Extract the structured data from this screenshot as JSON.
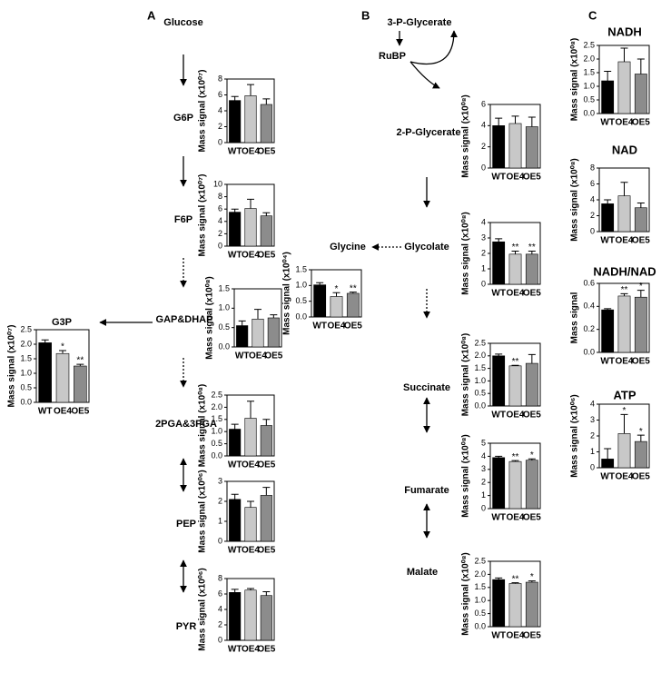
{
  "labels": {
    "panel_a": "A",
    "panel_b": "B",
    "panel_c": "C",
    "glucose": "Glucose",
    "p3_glycerate": "3-P-Glycerate",
    "rubp": "RuBP"
  },
  "bar_colors": [
    "#000000",
    "#c8c8c8",
    "#8c8c8c"
  ],
  "chart_data": [
    {
      "type": "bar",
      "title": "G6P",
      "y_label": "Mass signal (x10⁰⁷)",
      "categories": [
        "WT",
        "OE4",
        "OE5"
      ],
      "values": [
        5.3,
        5.9,
        4.8
      ],
      "errors": [
        0.5,
        1.4,
        0.7
      ],
      "ylim": [
        0,
        8
      ],
      "yticks": [
        0,
        2,
        4,
        6,
        8
      ]
    },
    {
      "type": "bar",
      "title": "F6P",
      "y_label": "Mass signal (x10⁰⁷)",
      "categories": [
        "WT",
        "OE4",
        "OE5"
      ],
      "values": [
        5.5,
        6.1,
        4.9
      ],
      "errors": [
        0.5,
        1.5,
        0.5
      ],
      "ylim": [
        0,
        10
      ],
      "yticks": [
        0,
        2,
        4,
        6,
        8,
        10
      ]
    },
    {
      "type": "bar",
      "title": "GAP&DHAP",
      "y_label": "Mass signal (x10⁰⁸)",
      "categories": [
        "WT",
        "OE4",
        "OE5"
      ],
      "values": [
        0.55,
        0.72,
        0.75
      ],
      "errors": [
        0.12,
        0.25,
        0.08
      ],
      "ylim": [
        0,
        1.5
      ],
      "yticks": [
        {
          "value": 0,
          "label": "0.0"
        },
        0.5,
        {
          "value": 1,
          "label": "1.0"
        },
        1.5
      ]
    },
    {
      "type": "bar",
      "title": "2PGA&3PGA",
      "y_label": "Mass signal (x10⁰⁸)",
      "categories": [
        "WT",
        "OE4",
        "OE5"
      ],
      "values": [
        1.1,
        1.55,
        1.25
      ],
      "errors": [
        0.2,
        0.7,
        0.25
      ],
      "ylim": [
        0,
        2.5
      ],
      "yticks": [
        {
          "value": 0,
          "label": "0.0"
        },
        0.5,
        {
          "value": 1,
          "label": "1.0"
        },
        1.5,
        {
          "value": 2,
          "label": "2.0"
        },
        2.5
      ]
    },
    {
      "type": "bar",
      "title": "PEP",
      "y_label": "Mass signal (x10⁰⁶)",
      "categories": [
        "WT",
        "OE4",
        "OE5"
      ],
      "values": [
        2.1,
        1.7,
        2.3
      ],
      "errors": [
        0.25,
        0.3,
        0.4
      ],
      "ylim": [
        0,
        3
      ],
      "yticks": [
        0,
        1,
        2,
        3
      ]
    },
    {
      "type": "bar",
      "title": "PYR",
      "y_label": "Mass signal (x10⁰⁶)",
      "categories": [
        "WT",
        "OE4",
        "OE5"
      ],
      "values": [
        6.2,
        6.5,
        5.8
      ],
      "errors": [
        0.4,
        0.2,
        0.5
      ],
      "ylim": [
        0,
        8
      ],
      "yticks": [
        0,
        2,
        4,
        6,
        8
      ]
    },
    {
      "type": "bar",
      "title": "G3P",
      "y_label": "Mass signal (x10⁰⁷)",
      "categories": [
        "WT",
        "OE4",
        "OE5"
      ],
      "values": [
        2.05,
        1.68,
        1.25
      ],
      "errors": [
        0.1,
        0.1,
        0.06
      ],
      "annotations": [
        null,
        "*",
        "**"
      ],
      "ylim": [
        0,
        2.5
      ],
      "yticks": [
        {
          "value": 0,
          "label": "0.0"
        },
        0.5,
        {
          "value": 1,
          "label": "1.0"
        },
        1.5,
        {
          "value": 2,
          "label": "2.0"
        },
        2.5
      ]
    },
    {
      "type": "bar",
      "title": "2-P-Glycerate",
      "y_label": "Mass signal (x10⁰⁸)",
      "categories": [
        "WT",
        "OE4",
        "OE5"
      ],
      "values": [
        4.0,
        4.2,
        3.9
      ],
      "errors": [
        0.7,
        0.7,
        0.9
      ],
      "ylim": [
        0,
        6
      ],
      "yticks": [
        0,
        2,
        4,
        6
      ]
    },
    {
      "type": "bar",
      "title": "Glycolate",
      "y_label": "Mass signal (x10⁰⁸)",
      "categories": [
        "WT",
        "OE4",
        "OE5"
      ],
      "values": [
        2.75,
        1.95,
        1.95
      ],
      "errors": [
        0.2,
        0.2,
        0.2
      ],
      "annotations": [
        null,
        "**",
        "**"
      ],
      "ylim": [
        0,
        4
      ],
      "yticks": [
        0,
        1,
        2,
        3,
        4
      ]
    },
    {
      "type": "bar",
      "title": "Glycine",
      "y_label": "Mass signal (x10⁰⁴)",
      "categories": [
        "WT",
        "OE4",
        "OE5"
      ],
      "values": [
        1.02,
        0.65,
        0.75
      ],
      "errors": [
        0.07,
        0.12,
        0.04
      ],
      "annotations": [
        null,
        "*",
        "**"
      ],
      "ylim": [
        0,
        1.5
      ],
      "yticks": [
        {
          "value": 0,
          "label": "0.0"
        },
        0.5,
        {
          "value": 1,
          "label": "1.0"
        },
        1.5
      ]
    },
    {
      "type": "bar",
      "title": "Succinate",
      "y_label": "Mass signal (x10⁰⁸)",
      "categories": [
        "WT",
        "OE4",
        "OE5"
      ],
      "values": [
        2.0,
        1.6,
        1.7
      ],
      "errors": [
        0.07,
        0.02,
        0.35
      ],
      "annotations": [
        null,
        "**",
        null
      ],
      "ylim": [
        0,
        2.5
      ],
      "yticks": [
        {
          "value": 0,
          "label": "0.0"
        },
        0.5,
        {
          "value": 1,
          "label": "1.0"
        },
        1.5,
        {
          "value": 2,
          "label": "2.0"
        },
        2.5
      ]
    },
    {
      "type": "bar",
      "title": "Fumarate",
      "y_label": "Mass signal (x10⁰⁸)",
      "categories": [
        "WT",
        "OE4",
        "OE5"
      ],
      "values": [
        3.9,
        3.6,
        3.7
      ],
      "errors": [
        0.1,
        0.07,
        0.1
      ],
      "annotations": [
        null,
        "**",
        "*"
      ],
      "ylim": [
        0,
        5
      ],
      "yticks": [
        0,
        1,
        2,
        3,
        4,
        5
      ]
    },
    {
      "type": "bar",
      "title": "Malate",
      "y_label": "Mass signal (x10⁰⁸)",
      "categories": [
        "WT",
        "OE4",
        "OE5"
      ],
      "values": [
        1.8,
        1.65,
        1.7
      ],
      "errors": [
        0.06,
        0.03,
        0.05
      ],
      "annotations": [
        null,
        "**",
        "*"
      ],
      "ylim": [
        0,
        2.5
      ],
      "yticks": [
        {
          "value": 0,
          "label": "0.0"
        },
        0.5,
        {
          "value": 1,
          "label": "1.0"
        },
        1.5,
        {
          "value": 2,
          "label": "2.0"
        },
        2.5
      ]
    },
    {
      "type": "bar",
      "title": "NADH",
      "y_label": "Mass signal (x10⁰⁸)",
      "categories": [
        "WT",
        "OE4",
        "OE5"
      ],
      "values": [
        1.2,
        1.9,
        1.45
      ],
      "errors": [
        0.35,
        0.5,
        0.55
      ],
      "ylim": [
        0,
        2.5
      ],
      "yticks": [
        {
          "value": 0,
          "label": "0.0"
        },
        0.5,
        {
          "value": 1,
          "label": "1.0"
        },
        1.5,
        {
          "value": 2,
          "label": "2.0"
        },
        2.5
      ]
    },
    {
      "type": "bar",
      "title": "NAD",
      "y_label": "Mass signal (x10⁰⁸)",
      "categories": [
        "WT",
        "OE4",
        "OE5"
      ],
      "values": [
        3.5,
        4.5,
        3.0
      ],
      "errors": [
        0.5,
        1.7,
        0.6
      ],
      "ylim": [
        0,
        8
      ],
      "yticks": [
        0,
        2,
        4,
        6,
        8
      ]
    },
    {
      "type": "bar",
      "title": "NADH/NAD",
      "y_label": "Mass signal",
      "categories": [
        "WT",
        "OE4",
        "OE5"
      ],
      "values": [
        0.37,
        0.49,
        0.48
      ],
      "errors": [
        0.01,
        0.02,
        0.06
      ],
      "annotations": [
        null,
        "**",
        "*"
      ],
      "ylim": [
        0,
        0.6
      ],
      "yticks": [
        {
          "value": 0,
          "label": "0.0"
        },
        0.2,
        0.4,
        0.6
      ]
    },
    {
      "type": "bar",
      "title": "ATP",
      "y_label": "Mass signal (x10⁰⁶)",
      "categories": [
        "WT",
        "OE4",
        "OE5"
      ],
      "values": [
        0.55,
        2.15,
        1.65
      ],
      "errors": [
        0.65,
        1.2,
        0.4
      ],
      "annotations": [
        null,
        "*",
        "*"
      ],
      "ylim": [
        0,
        4
      ],
      "yticks": [
        0,
        1,
        2,
        3,
        4
      ]
    }
  ]
}
